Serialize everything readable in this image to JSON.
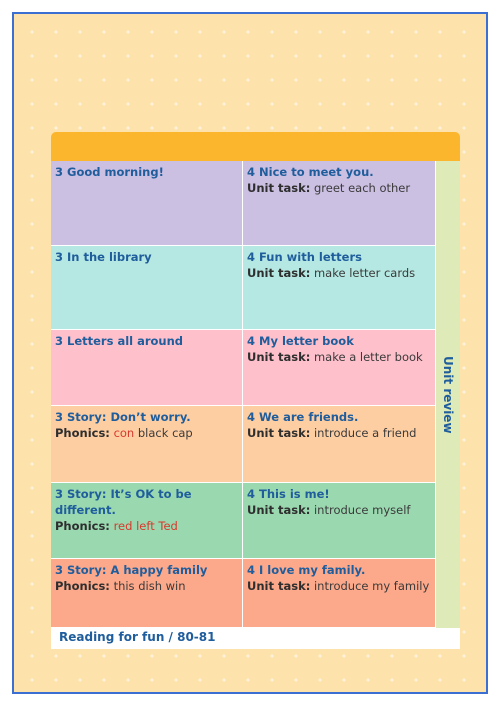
{
  "rows": [
    {
      "left": {
        "title": "3 Good morning!"
      },
      "right": {
        "title": "4 Nice to meet you.",
        "task_label": "Unit task:",
        "task": "greet each other"
      }
    },
    {
      "left": {
        "title": "3 In the library"
      },
      "right": {
        "title": "4 Fun with letters",
        "task_label": "Unit task:",
        "task": "make letter cards"
      }
    },
    {
      "left": {
        "title": "3 Letters all around"
      },
      "right": {
        "title": "4 My letter book",
        "task_label": "Unit task:",
        "task": "make a letter book"
      }
    },
    {
      "left": {
        "title": "3 Story: Don’t worry.",
        "phonics_label": "Phonics:",
        "phonics": [
          "con",
          "black",
          "cap"
        ]
      },
      "right": {
        "title": "4 We are friends.",
        "task_label": "Unit task:",
        "task": "introduce a friend"
      }
    },
    {
      "left": {
        "title": "3 Story: It’s OK to be different.",
        "phonics_label": "Phonics:",
        "phonics": [
          "red",
          "left",
          "Ted"
        ]
      },
      "right": {
        "title": "4 This is me!",
        "task_label": "Unit task:",
        "task": "introduce myself"
      }
    },
    {
      "left": {
        "title": "3 Story: A happy family",
        "phonics_label": "Phonics:",
        "phonics": [
          "this",
          "dish",
          "win"
        ]
      },
      "right": {
        "title": "4 I love my family.",
        "task_label": "Unit task:",
        "task": "introduce my family"
      }
    }
  ],
  "side_label": "Unit review",
  "footer": "Reading for fun / 80-81"
}
